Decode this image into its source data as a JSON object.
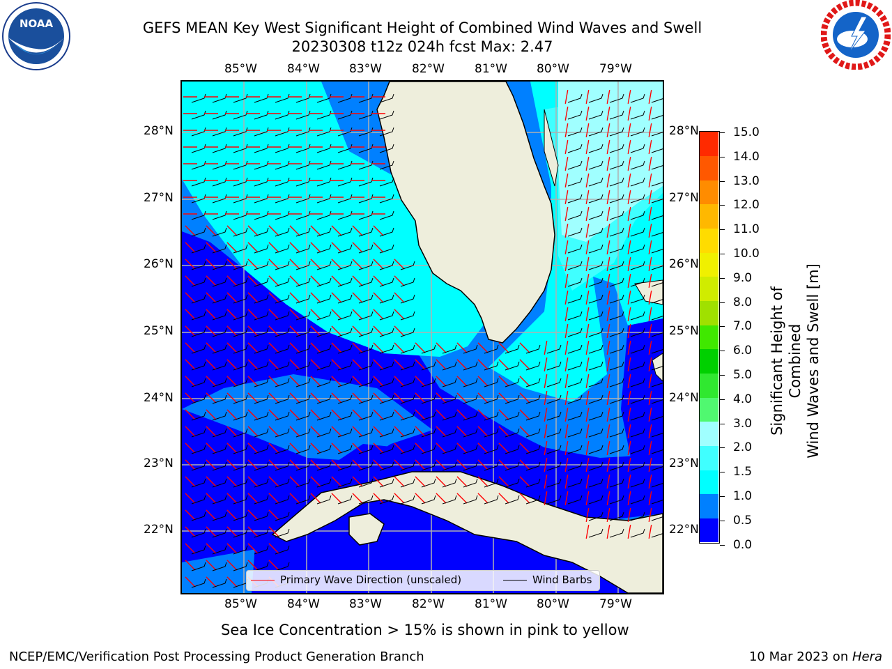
{
  "title": {
    "line1": "GEFS MEAN Key West Significant Height of Combined Wind Waves and Swell",
    "line2": "20230308 t12z 024h fcst   Max: 2.47"
  },
  "logos": {
    "left": {
      "icon": "noaa-logo",
      "text": "NOAA"
    },
    "right": {
      "icon": "nws-logo",
      "text": "NATIONAL WEATHER SERVICE"
    }
  },
  "map": {
    "lon_labels": [
      "85°W",
      "84°W",
      "83°W",
      "82°W",
      "81°W",
      "80°W",
      "79°W"
    ],
    "lat_labels": [
      "28°N",
      "27°N",
      "26°N",
      "25°N",
      "24°N",
      "23°N",
      "22°N"
    ],
    "colors": {
      "land": "#eeeedc",
      "band_0_0_5": "#0000ff",
      "band_0_5_1_0": "#0080ff",
      "band_1_0_1_5": "#00ffff",
      "band_1_5_2_0": "#40ffff",
      "band_2_0_3_0": "#a0ffff",
      "grid": "#b0b0b0",
      "wave_arrow": "#ff0000",
      "wind_barb": "#000000"
    }
  },
  "legend": {
    "wave_label": "Primary Wave Direction (unscaled)",
    "barb_label": "Wind Barbs"
  },
  "colorbar": {
    "label_line1": "Significant Height of Combined",
    "label_line2": "Wind Waves and Swell [m]",
    "ticks": [
      "15.0",
      "14.0",
      "13.0",
      "12.0",
      "11.0",
      "10.0",
      "9.0",
      "8.0",
      "7.0",
      "6.0",
      "5.0",
      "4.0",
      "3.0",
      "2.0",
      "1.5",
      "1.0",
      "0.5",
      "0.0"
    ],
    "levels": [
      0.0,
      0.5,
      1.0,
      1.5,
      2.0,
      3.0,
      4.0,
      5.0,
      6.0,
      7.0,
      8.0,
      9.0,
      10.0,
      11.0,
      12.0,
      13.0,
      14.0,
      15.0
    ],
    "colors": [
      "#0000ff",
      "#0080ff",
      "#00ffff",
      "#40ffff",
      "#a0ffff",
      "#50f870",
      "#30e830",
      "#00d000",
      "#40e800",
      "#a0e000",
      "#d0ec00",
      "#f0f000",
      "#ffdc00",
      "#ffb800",
      "#ff8c00",
      "#ff5800",
      "#ff2a00"
    ]
  },
  "subtitle": "Sea Ice Concentration > 15% is shown in pink to yellow",
  "footer": {
    "left": "NCEP/EMC/Verification Post Processing Product Generation Branch",
    "right_date": "10 Mar 2023 on ",
    "right_host": "Hera"
  }
}
